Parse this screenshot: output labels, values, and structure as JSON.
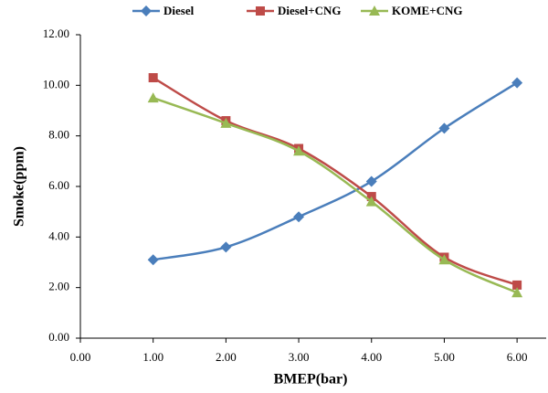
{
  "chart_data": {
    "type": "line",
    "x_label": "BMEP(bar)",
    "y_label": "Smoke(ppm)",
    "x": [
      1,
      2,
      3,
      4,
      5,
      6
    ],
    "series": [
      {
        "name": "Diesel",
        "color": "#4a7ebb",
        "marker": "diamond",
        "values": [
          3.1,
          3.6,
          4.8,
          6.2,
          8.3,
          10.1
        ]
      },
      {
        "name": "Diesel+CNG",
        "color": "#be4b48",
        "marker": "square",
        "values": [
          10.3,
          8.6,
          7.5,
          5.6,
          3.2,
          2.1
        ]
      },
      {
        "name": "KOME+CNG",
        "color": "#98b954",
        "marker": "triangle",
        "values": [
          9.5,
          8.5,
          7.4,
          5.4,
          3.1,
          1.8
        ]
      }
    ],
    "xlim": [
      0,
      6.4
    ],
    "ylim": [
      0,
      12
    ],
    "xticks": [
      {
        "value": 0,
        "label": "0.00"
      },
      {
        "value": 1,
        "label": "1.00"
      },
      {
        "value": 2,
        "label": "2.00"
      },
      {
        "value": 3,
        "label": "3.00"
      },
      {
        "value": 4,
        "label": "4.00"
      },
      {
        "value": 5,
        "label": "5.00"
      },
      {
        "value": 6,
        "label": "6.00"
      }
    ],
    "yticks": [
      {
        "value": 0,
        "label": "0.00"
      },
      {
        "value": 2,
        "label": "2.00"
      },
      {
        "value": 4,
        "label": "4.00"
      },
      {
        "value": 6,
        "label": "6.00"
      },
      {
        "value": 8,
        "label": "8.00"
      },
      {
        "value": 10,
        "label": "10.00"
      },
      {
        "value": 12,
        "label": "12.00"
      }
    ],
    "smooth": true,
    "legend": "top"
  }
}
